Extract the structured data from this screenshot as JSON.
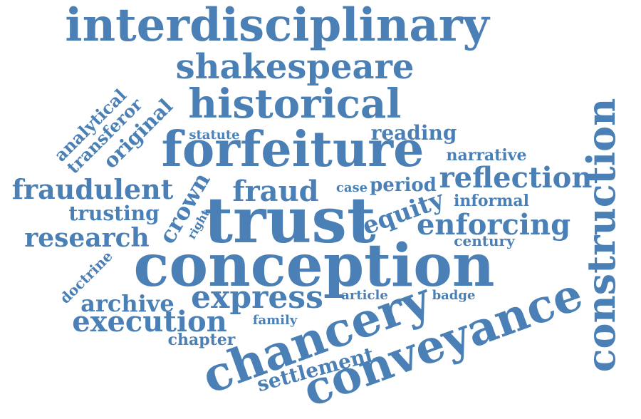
{
  "color": "#4a80b5",
  "words": {
    "interdisciplinary": "interdisciplinary",
    "shakespeare": "shakespeare",
    "historical": "historical",
    "analytical": "analytical",
    "transferor": "transferor",
    "original": "original",
    "statute": "statute",
    "forfeiture": "forfeiture",
    "reading": "reading",
    "narrative": "narrative",
    "fraudulent": "fraudulent",
    "crown": "crown",
    "fraud": "fraud",
    "case": "case",
    "period": "period",
    "reflection": "reflection",
    "informal": "informal",
    "trusting": "trusting",
    "right": "right",
    "trust": "trust",
    "equity": "equity",
    "enforcing": "enforcing",
    "research": "research",
    "century": "century",
    "construction": "construction",
    "conception": "conception",
    "doctrine": "doctrine",
    "archive": "archive",
    "express": "express",
    "article": "article",
    "badge": "badge",
    "execution": "execution",
    "family": "family",
    "chancery": "chancery",
    "conveyance": "conveyance",
    "chapter": "chapter",
    "settlement": "settlement"
  }
}
